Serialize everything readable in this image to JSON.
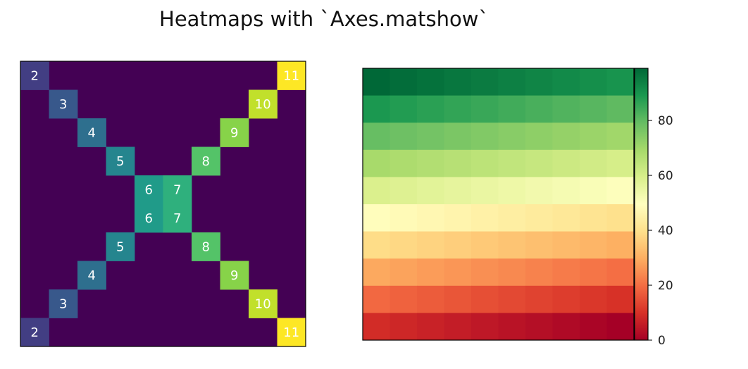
{
  "figure": {
    "title": "Heatmaps with `Axes.matshow`"
  },
  "chart_data": [
    {
      "type": "heatmap",
      "cmap": "viridis",
      "rows": 10,
      "cols": 10,
      "vmin": 0,
      "vmax": 11,
      "background_value": 0,
      "cells": [
        {
          "row": 0,
          "col": 0,
          "value": 2
        },
        {
          "row": 1,
          "col": 1,
          "value": 3
        },
        {
          "row": 2,
          "col": 2,
          "value": 4
        },
        {
          "row": 3,
          "col": 3,
          "value": 5
        },
        {
          "row": 4,
          "col": 4,
          "value": 6
        },
        {
          "row": 5,
          "col": 4,
          "value": 6
        },
        {
          "row": 6,
          "col": 3,
          "value": 5
        },
        {
          "row": 7,
          "col": 2,
          "value": 4
        },
        {
          "row": 8,
          "col": 1,
          "value": 3
        },
        {
          "row": 9,
          "col": 0,
          "value": 2
        },
        {
          "row": 0,
          "col": 9,
          "value": 11
        },
        {
          "row": 1,
          "col": 8,
          "value": 10
        },
        {
          "row": 2,
          "col": 7,
          "value": 9
        },
        {
          "row": 3,
          "col": 6,
          "value": 8
        },
        {
          "row": 4,
          "col": 5,
          "value": 7
        },
        {
          "row": 5,
          "col": 5,
          "value": 7
        },
        {
          "row": 6,
          "col": 6,
          "value": 8
        },
        {
          "row": 7,
          "col": 7,
          "value": 9
        },
        {
          "row": 8,
          "col": 8,
          "value": 10
        },
        {
          "row": 9,
          "col": 9,
          "value": 11
        }
      ],
      "annotated": true,
      "ticks": false
    },
    {
      "type": "heatmap",
      "cmap": "RdYlGn",
      "rows": 10,
      "cols": 10,
      "values": [
        [
          99,
          98,
          97,
          96,
          95,
          94,
          93,
          92,
          91,
          90
        ],
        [
          89,
          88,
          87,
          86,
          85,
          84,
          83,
          82,
          81,
          80
        ],
        [
          79,
          78,
          77,
          76,
          75,
          74,
          73,
          72,
          71,
          70
        ],
        [
          69,
          68,
          67,
          66,
          65,
          64,
          63,
          62,
          61,
          60
        ],
        [
          59,
          58,
          57,
          56,
          55,
          54,
          53,
          52,
          51,
          50
        ],
        [
          49,
          48,
          47,
          46,
          45,
          44,
          43,
          42,
          41,
          40
        ],
        [
          39,
          38,
          37,
          36,
          35,
          34,
          33,
          32,
          31,
          30
        ],
        [
          29,
          28,
          27,
          26,
          25,
          24,
          23,
          22,
          21,
          20
        ],
        [
          19,
          18,
          17,
          16,
          15,
          14,
          13,
          12,
          11,
          10
        ],
        [
          9,
          8,
          7,
          6,
          5,
          4,
          3,
          2,
          1,
          0
        ]
      ],
      "vmin": 0,
      "vmax": 99,
      "annotated": false,
      "ticks": false,
      "colorbar": {
        "position": "right",
        "ticks": [
          0,
          20,
          40,
          60,
          80
        ],
        "tick_labels": [
          "0",
          "20",
          "40",
          "60",
          "80"
        ]
      }
    }
  ]
}
